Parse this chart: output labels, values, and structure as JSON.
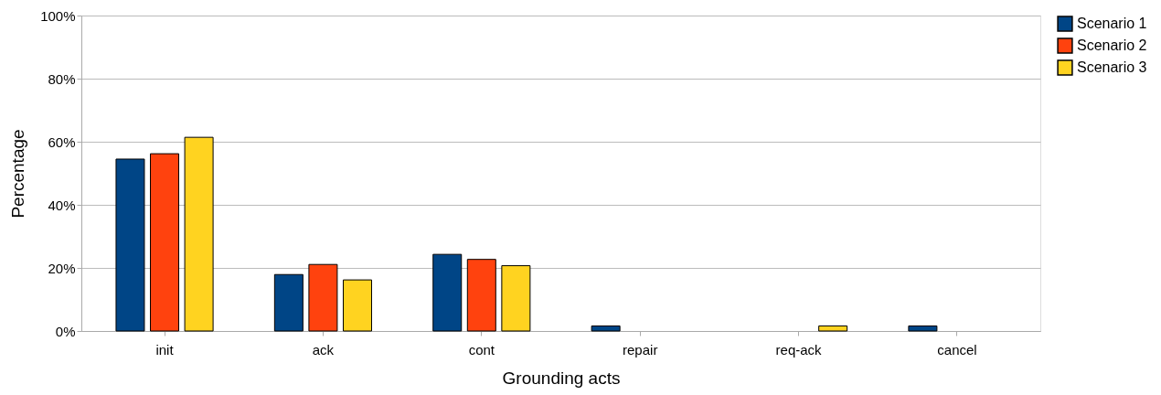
{
  "chart_data": {
    "type": "bar",
    "xlabel": "Grounding acts",
    "ylabel": "Percentage",
    "categories": [
      "init",
      "ack",
      "cont",
      "repair",
      "req-ack",
      "cancel"
    ],
    "series": [
      {
        "name": "Scenario 1",
        "color": "#004586",
        "values": [
          54.5,
          17.9,
          24.3,
          1.6,
          null,
          1.6
        ]
      },
      {
        "name": "Scenario 2",
        "color": "#ff420e",
        "values": [
          56.2,
          21.1,
          22.7,
          null,
          null,
          null
        ]
      },
      {
        "name": "Scenario 3",
        "color": "#ffd320",
        "values": [
          61.4,
          16.2,
          20.7,
          null,
          1.6,
          null
        ]
      }
    ],
    "ylim": [
      0,
      100
    ],
    "yticks": [
      {
        "value": 0,
        "label": "0%"
      },
      {
        "value": 20,
        "label": "20%"
      },
      {
        "value": 40,
        "label": "40%"
      },
      {
        "value": 60,
        "label": "60%"
      },
      {
        "value": 80,
        "label": "80%"
      },
      {
        "value": 100,
        "label": "100%"
      }
    ],
    "grid": "y",
    "legend": "right"
  }
}
